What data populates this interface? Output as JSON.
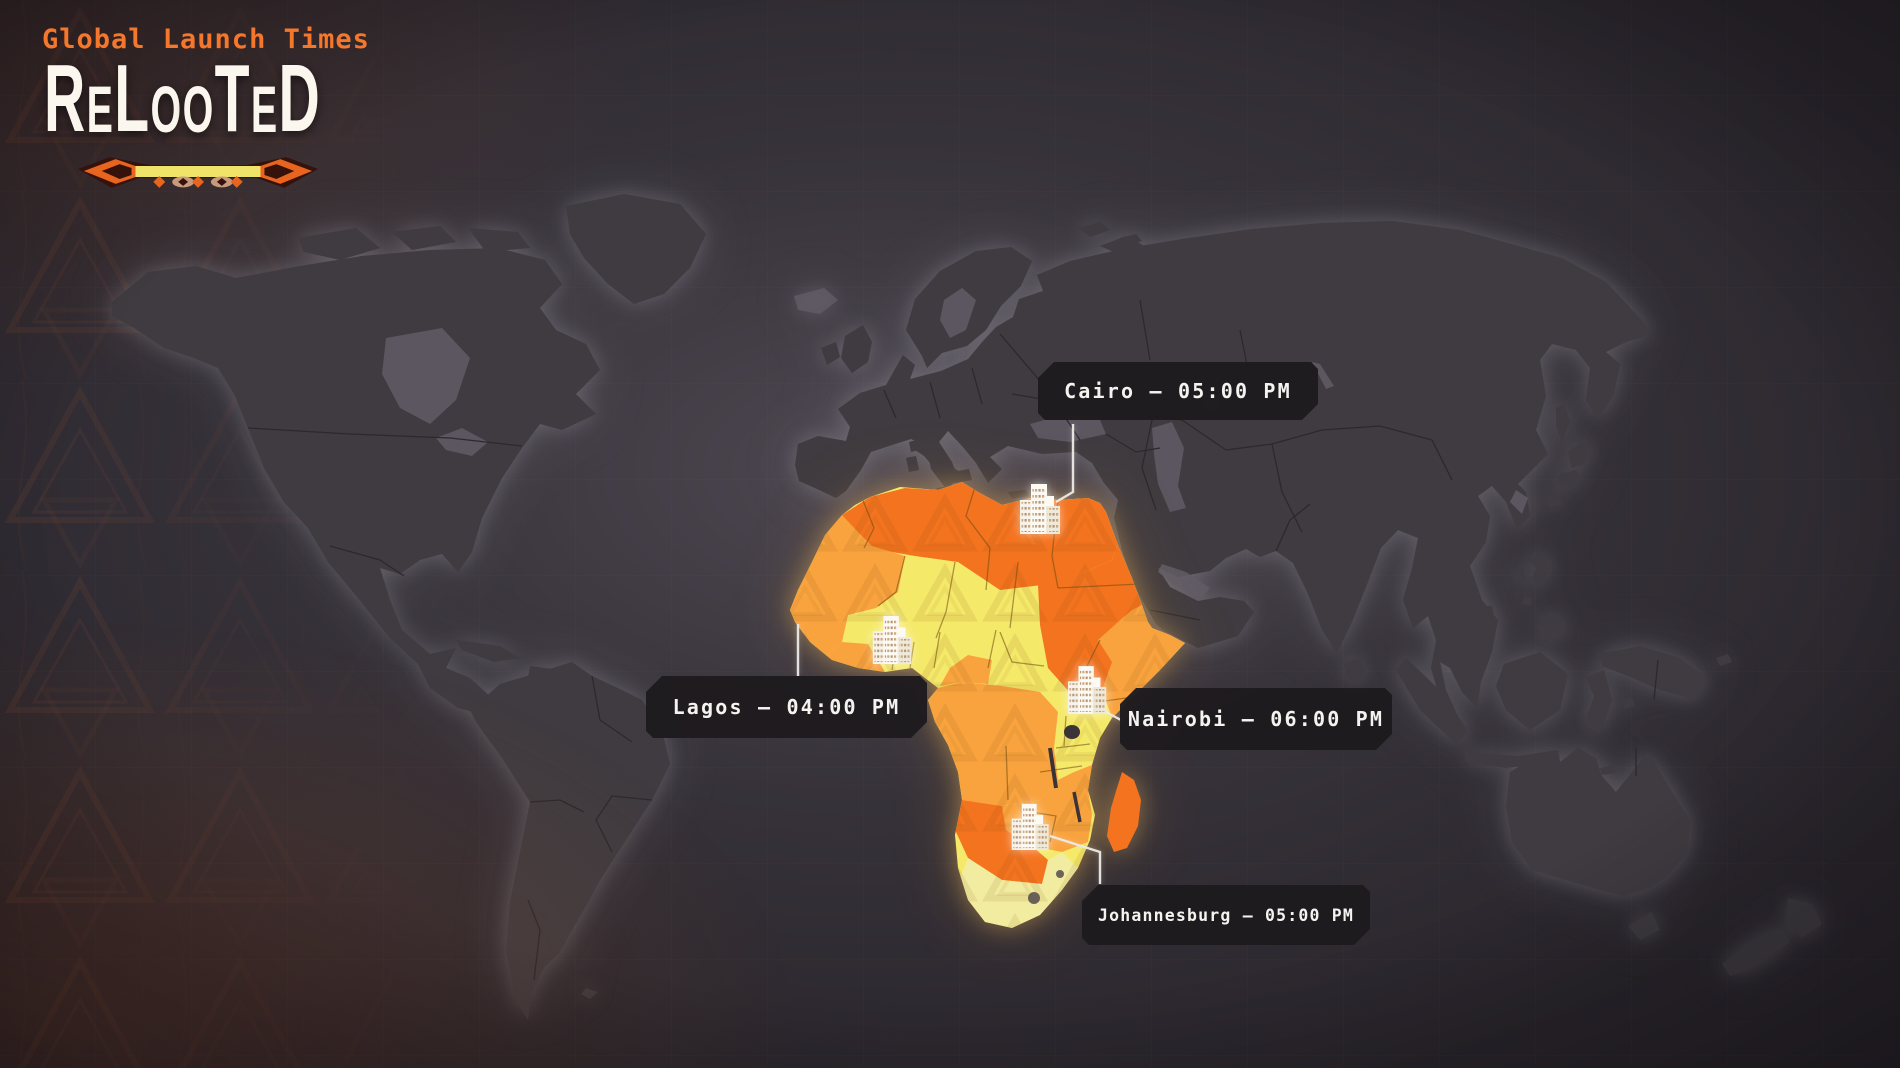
{
  "header": {
    "subtitle": "Global Launch Times",
    "logo": "ReLooTeD"
  },
  "cities": [
    {
      "id": "cairo",
      "name": "Cairo",
      "time": "05:00 PM",
      "label": "Cairo – 05:00 PM"
    },
    {
      "id": "lagos",
      "name": "Lagos",
      "time": "04:00 PM",
      "label": "Lagos – 04:00 PM"
    },
    {
      "id": "nairobi",
      "name": "Nairobi",
      "time": "06:00 PM",
      "label": "Nairobi – 06:00 PM"
    },
    {
      "id": "johannesburg",
      "name": "Johannesburg",
      "time": "05:00 PM",
      "label": "Johannesburg – 05:00 PM"
    }
  ],
  "colors": {
    "deep_orange": "#F4731F",
    "medium_orange": "#F9A33E",
    "yellow": "#F5E96A",
    "pale_yellow": "#F2ECA0",
    "label_bg": "rgba(30,27,30,0.97)",
    "label_text": "#F5F3F0",
    "heading_orange": "#F4772B",
    "logo_white": "#FBF7EF",
    "connector_white": "#ECEAE6"
  }
}
